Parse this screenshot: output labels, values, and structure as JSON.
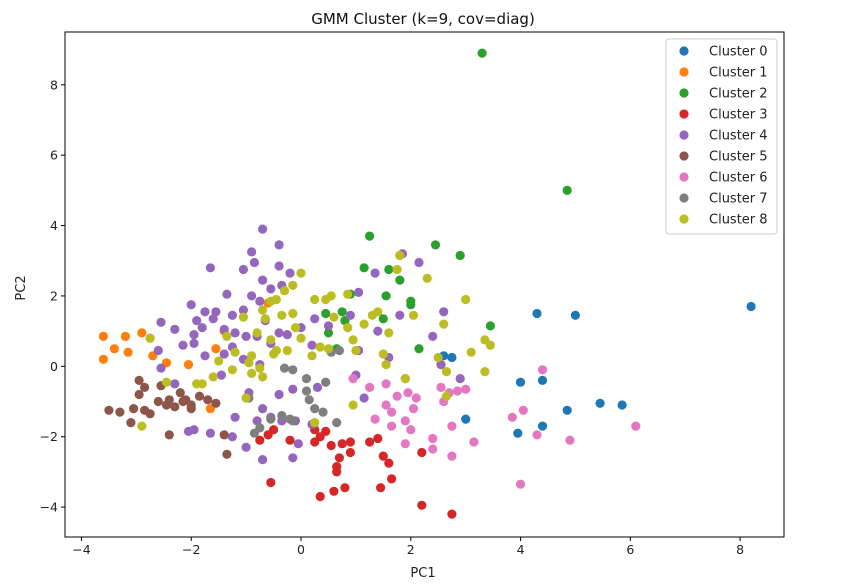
{
  "chart_data": {
    "type": "scatter",
    "title": "GMM Cluster (k=9, cov=diag)",
    "xlabel": "PC1",
    "ylabel": "PC2",
    "xlim": [
      -4.3,
      8.8
    ],
    "ylim": [
      -4.85,
      9.5
    ],
    "xticks": [
      -4,
      -2,
      0,
      2,
      4,
      6,
      8
    ],
    "yticks": [
      -4,
      -2,
      0,
      2,
      4,
      6,
      8
    ],
    "grid": false,
    "legend_position": "top-right",
    "series": [
      {
        "name": "Cluster 0",
        "color": "#1f77b4",
        "points": [
          [
            8.2,
            1.7
          ],
          [
            4.3,
            1.5
          ],
          [
            5.0,
            1.45
          ],
          [
            2.6,
            0.3
          ],
          [
            2.75,
            0.25
          ],
          [
            4.0,
            -0.45
          ],
          [
            4.4,
            -0.4
          ],
          [
            5.45,
            -1.05
          ],
          [
            5.85,
            -1.1
          ],
          [
            4.85,
            -1.25
          ],
          [
            3.0,
            -1.5
          ],
          [
            4.4,
            -1.7
          ],
          [
            3.95,
            -1.9
          ]
        ]
      },
      {
        "name": "Cluster 1",
        "color": "#ff7f0e",
        "points": [
          [
            -3.6,
            0.85
          ],
          [
            -3.2,
            0.85
          ],
          [
            -2.9,
            0.95
          ],
          [
            -3.4,
            0.5
          ],
          [
            -3.15,
            0.4
          ],
          [
            -3.6,
            0.2
          ],
          [
            -2.7,
            0.3
          ],
          [
            -2.45,
            0.1
          ],
          [
            -2.05,
            0.05
          ],
          [
            -1.55,
            0.5
          ],
          [
            -1.4,
            1.0
          ],
          [
            -0.6,
            1.8
          ],
          [
            -1.65,
            -1.2
          ]
        ]
      },
      {
        "name": "Cluster 2",
        "color": "#2ca02c",
        "points": [
          [
            3.3,
            8.9
          ],
          [
            4.85,
            5.0
          ],
          [
            1.25,
            3.7
          ],
          [
            2.45,
            3.45
          ],
          [
            2.9,
            3.15
          ],
          [
            1.15,
            2.8
          ],
          [
            1.6,
            2.75
          ],
          [
            1.8,
            2.45
          ],
          [
            0.9,
            2.05
          ],
          [
            1.55,
            2.0
          ],
          [
            2.0,
            1.85
          ],
          [
            2.0,
            1.75
          ],
          [
            0.45,
            1.5
          ],
          [
            0.75,
            1.55
          ],
          [
            1.5,
            1.35
          ],
          [
            0.8,
            1.3
          ],
          [
            3.45,
            1.15
          ],
          [
            0.5,
            0.95
          ],
          [
            2.15,
            0.5
          ],
          [
            0.65,
            0.5
          ]
        ]
      },
      {
        "name": "Cluster 3",
        "color": "#d62728",
        "points": [
          [
            -0.6,
            -1.95
          ],
          [
            -0.75,
            -2.1
          ],
          [
            -0.5,
            -1.8
          ],
          [
            0.25,
            -1.8
          ],
          [
            0.45,
            -1.85
          ],
          [
            0.35,
            -2.0
          ],
          [
            0.25,
            -2.15
          ],
          [
            0.55,
            -2.25
          ],
          [
            0.75,
            -2.2
          ],
          [
            0.9,
            -2.15
          ],
          [
            1.25,
            -2.15
          ],
          [
            1.4,
            -2.05
          ],
          [
            -0.2,
            -2.1
          ],
          [
            0.7,
            -2.6
          ],
          [
            0.65,
            -2.85
          ],
          [
            0.65,
            -3.0
          ],
          [
            0.9,
            -2.45
          ],
          [
            1.5,
            -2.55
          ],
          [
            1.6,
            -2.75
          ],
          [
            2.2,
            -2.45
          ],
          [
            1.65,
            -3.2
          ],
          [
            1.45,
            -3.45
          ],
          [
            0.8,
            -3.45
          ],
          [
            0.6,
            -3.55
          ],
          [
            0.35,
            -3.7
          ],
          [
            -0.55,
            -3.3
          ],
          [
            2.2,
            -3.95
          ],
          [
            2.75,
            -4.2
          ]
        ]
      },
      {
        "name": "Cluster 4",
        "color": "#9467bd",
        "points": [
          [
            -0.7,
            3.9
          ],
          [
            -0.9,
            3.25
          ],
          [
            -0.4,
            3.45
          ],
          [
            -0.85,
            2.95
          ],
          [
            -1.05,
            2.75
          ],
          [
            -0.4,
            2.85
          ],
          [
            -0.2,
            2.65
          ],
          [
            -0.7,
            2.45
          ],
          [
            -0.55,
            2.2
          ],
          [
            -0.35,
            2.3
          ],
          [
            -1.65,
            2.8
          ],
          [
            -1.35,
            2.05
          ],
          [
            -0.9,
            2.0
          ],
          [
            -0.75,
            1.85
          ],
          [
            -2.0,
            1.75
          ],
          [
            -1.75,
            1.55
          ],
          [
            -1.55,
            1.55
          ],
          [
            -1.25,
            1.45
          ],
          [
            -1.05,
            1.6
          ],
          [
            -0.65,
            1.3
          ],
          [
            -1.9,
            1.3
          ],
          [
            -1.6,
            1.35
          ],
          [
            -1.8,
            1.1
          ],
          [
            -1.95,
            0.9
          ],
          [
            -1.4,
            1.05
          ],
          [
            -1.2,
            0.95
          ],
          [
            -1.0,
            0.85
          ],
          [
            -0.8,
            0.85
          ],
          [
            -0.55,
            0.65
          ],
          [
            -0.4,
            0.95
          ],
          [
            -0.25,
            0.9
          ],
          [
            0.0,
            1.1
          ],
          [
            -2.55,
            1.25
          ],
          [
            -2.75,
            0.8
          ],
          [
            -2.3,
            1.05
          ],
          [
            -2.15,
            0.6
          ],
          [
            -1.95,
            0.65
          ],
          [
            -2.6,
            0.45
          ],
          [
            -1.75,
            0.3
          ],
          [
            -1.4,
            0.35
          ],
          [
            -1.25,
            0.55
          ],
          [
            -1.05,
            0.2
          ],
          [
            -0.75,
            0.05
          ],
          [
            0.25,
            1.35
          ],
          [
            0.2,
            0.6
          ],
          [
            0.5,
            1.15
          ],
          [
            0.9,
            1.45
          ],
          [
            1.05,
            2.1
          ],
          [
            1.35,
            2.65
          ],
          [
            1.85,
            3.2
          ],
          [
            2.15,
            2.95
          ],
          [
            1.8,
            1.45
          ],
          [
            1.05,
            0.45
          ],
          [
            1.4,
            1.0
          ],
          [
            1.6,
            0.25
          ],
          [
            2.4,
            0.85
          ],
          [
            2.6,
            1.55
          ],
          [
            2.55,
            0.05
          ],
          [
            2.9,
            -0.35
          ],
          [
            1.0,
            -0.25
          ],
          [
            1.15,
            -0.9
          ],
          [
            -1.2,
            -1.45
          ],
          [
            -1.45,
            -0.25
          ],
          [
            -0.95,
            -0.75
          ],
          [
            -0.4,
            -0.8
          ],
          [
            -0.15,
            -0.65
          ],
          [
            -0.55,
            -1.45
          ],
          [
            -0.35,
            -1.55
          ],
          [
            -0.8,
            -1.55
          ],
          [
            -1.65,
            -1.9
          ],
          [
            -1.95,
            -1.8
          ],
          [
            -2.05,
            -1.85
          ],
          [
            -1.0,
            -2.3
          ],
          [
            -0.7,
            -2.65
          ],
          [
            -0.15,
            -2.6
          ],
          [
            0.2,
            -1.65
          ],
          [
            -0.05,
            -2.2
          ],
          [
            0.3,
            -0.6
          ],
          [
            -0.7,
            -1.2
          ],
          [
            -1.25,
            -2.0
          ],
          [
            -2.3,
            -0.5
          ],
          [
            -2.55,
            -0.05
          ],
          [
            -0.1,
            -1.55
          ]
        ]
      },
      {
        "name": "Cluster 5",
        "color": "#8c564b",
        "points": [
          [
            -2.95,
            -0.4
          ],
          [
            -2.85,
            -0.6
          ],
          [
            -2.95,
            -0.8
          ],
          [
            -2.55,
            -0.55
          ],
          [
            -2.4,
            -0.95
          ],
          [
            -2.2,
            -0.75
          ],
          [
            -2.1,
            -0.95
          ],
          [
            -2.6,
            -1.0
          ],
          [
            -2.45,
            -1.1
          ],
          [
            -2.3,
            -1.15
          ],
          [
            -2.15,
            -1.0
          ],
          [
            -2.0,
            -1.1
          ],
          [
            -1.85,
            -0.85
          ],
          [
            -1.7,
            -0.95
          ],
          [
            -1.55,
            -1.05
          ],
          [
            -2.85,
            -1.25
          ],
          [
            -3.05,
            -1.2
          ],
          [
            -3.3,
            -1.3
          ],
          [
            -3.5,
            -1.25
          ],
          [
            -2.75,
            -1.35
          ],
          [
            -3.1,
            -1.6
          ],
          [
            -2.4,
            -1.95
          ],
          [
            -1.4,
            -1.95
          ],
          [
            -1.35,
            -2.5
          ],
          [
            -2.0,
            -1.2
          ]
        ]
      },
      {
        "name": "Cluster 6",
        "color": "#e377c2",
        "points": [
          [
            0.95,
            -0.35
          ],
          [
            1.25,
            -0.6
          ],
          [
            1.55,
            -0.5
          ],
          [
            1.9,
            -0.35
          ],
          [
            1.95,
            -0.75
          ],
          [
            2.1,
            -0.9
          ],
          [
            1.75,
            -0.85
          ],
          [
            2.05,
            -1.2
          ],
          [
            1.55,
            -1.1
          ],
          [
            1.65,
            -1.3
          ],
          [
            1.35,
            -1.5
          ],
          [
            1.9,
            -1.55
          ],
          [
            1.65,
            -1.7
          ],
          [
            2.0,
            -1.8
          ],
          [
            2.55,
            -0.6
          ],
          [
            2.7,
            -0.75
          ],
          [
            2.85,
            -0.7
          ],
          [
            3.0,
            -0.65
          ],
          [
            2.6,
            -1.0
          ],
          [
            2.75,
            -1.7
          ],
          [
            2.4,
            -2.05
          ],
          [
            3.15,
            -2.15
          ],
          [
            2.4,
            -2.35
          ],
          [
            2.75,
            -2.55
          ],
          [
            1.9,
            -2.2
          ],
          [
            3.85,
            -1.45
          ],
          [
            4.05,
            -1.25
          ],
          [
            4.3,
            -1.95
          ],
          [
            4.9,
            -2.1
          ],
          [
            4.4,
            -0.1
          ],
          [
            6.1,
            -1.7
          ],
          [
            4.0,
            -3.35
          ]
        ]
      },
      {
        "name": "Cluster 7",
        "color": "#7f7f7f",
        "points": [
          [
            0.55,
            0.4
          ],
          [
            0.7,
            0.45
          ],
          [
            0.1,
            -0.35
          ],
          [
            0.45,
            -0.45
          ],
          [
            0.1,
            -0.7
          ],
          [
            -0.3,
            -0.05
          ],
          [
            -0.15,
            -0.1
          ],
          [
            0.25,
            -1.2
          ],
          [
            0.4,
            -1.3
          ],
          [
            -0.95,
            -0.9
          ],
          [
            -0.35,
            -1.4
          ],
          [
            -0.55,
            -1.5
          ],
          [
            0.15,
            -0.95
          ],
          [
            0.65,
            -1.6
          ],
          [
            -0.2,
            -1.5
          ],
          [
            -0.75,
            -1.75
          ],
          [
            -0.85,
            -1.9
          ],
          [
            -0.15,
            -1.55
          ]
        ]
      },
      {
        "name": "Cluster 8",
        "color": "#bcbd22",
        "points": [
          [
            1.8,
            3.15
          ],
          [
            1.75,
            2.75
          ],
          [
            0.0,
            2.65
          ],
          [
            -0.3,
            2.15
          ],
          [
            -0.15,
            2.3
          ],
          [
            2.3,
            2.5
          ],
          [
            -0.45,
            1.9
          ],
          [
            -0.55,
            1.85
          ],
          [
            0.25,
            1.9
          ],
          [
            0.45,
            1.9
          ],
          [
            0.55,
            2.0
          ],
          [
            0.85,
            2.05
          ],
          [
            3.0,
            1.9
          ],
          [
            -0.7,
            1.6
          ],
          [
            -0.35,
            1.45
          ],
          [
            -0.15,
            1.5
          ],
          [
            -0.65,
            1.35
          ],
          [
            -1.05,
            1.4
          ],
          [
            -0.1,
            1.1
          ],
          [
            0.6,
            1.4
          ],
          [
            1.3,
            1.45
          ],
          [
            1.15,
            1.2
          ],
          [
            0.85,
            1.1
          ],
          [
            1.4,
            1.55
          ],
          [
            2.05,
            1.45
          ],
          [
            2.6,
            1.2
          ],
          [
            -1.35,
            0.85
          ],
          [
            -0.8,
            0.95
          ],
          [
            -0.55,
            0.75
          ],
          [
            -0.25,
            0.45
          ],
          [
            0.0,
            0.8
          ],
          [
            -0.45,
            0.45
          ],
          [
            -0.9,
            0.3
          ],
          [
            -1.2,
            0.4
          ],
          [
            -1.5,
            0.15
          ],
          [
            -1.25,
            -0.1
          ],
          [
            -0.75,
            -0.05
          ],
          [
            -0.95,
            0.1
          ],
          [
            -0.7,
            -0.3
          ],
          [
            -0.5,
            0.35
          ],
          [
            0.35,
            0.55
          ],
          [
            0.5,
            0.5
          ],
          [
            0.95,
            0.75
          ],
          [
            0.2,
            0.3
          ],
          [
            1.0,
            0.45
          ],
          [
            1.5,
            0.35
          ],
          [
            1.55,
            0.05
          ],
          [
            2.5,
            0.25
          ],
          [
            2.65,
            -0.15
          ],
          [
            3.1,
            0.4
          ],
          [
            3.35,
            0.75
          ],
          [
            3.45,
            0.6
          ],
          [
            3.35,
            -0.15
          ],
          [
            1.6,
            0.95
          ],
          [
            1.9,
            -0.35
          ],
          [
            -2.75,
            0.8
          ],
          [
            -2.45,
            -0.45
          ],
          [
            -1.8,
            -0.5
          ],
          [
            -1.9,
            -0.5
          ],
          [
            -2.9,
            -1.7
          ],
          [
            -1.0,
            -0.9
          ],
          [
            -0.9,
            -0.2
          ],
          [
            0.95,
            -1.1
          ],
          [
            2.65,
            -0.85
          ],
          [
            0.25,
            -1.6
          ],
          [
            -1.6,
            -0.3
          ]
        ]
      }
    ]
  }
}
